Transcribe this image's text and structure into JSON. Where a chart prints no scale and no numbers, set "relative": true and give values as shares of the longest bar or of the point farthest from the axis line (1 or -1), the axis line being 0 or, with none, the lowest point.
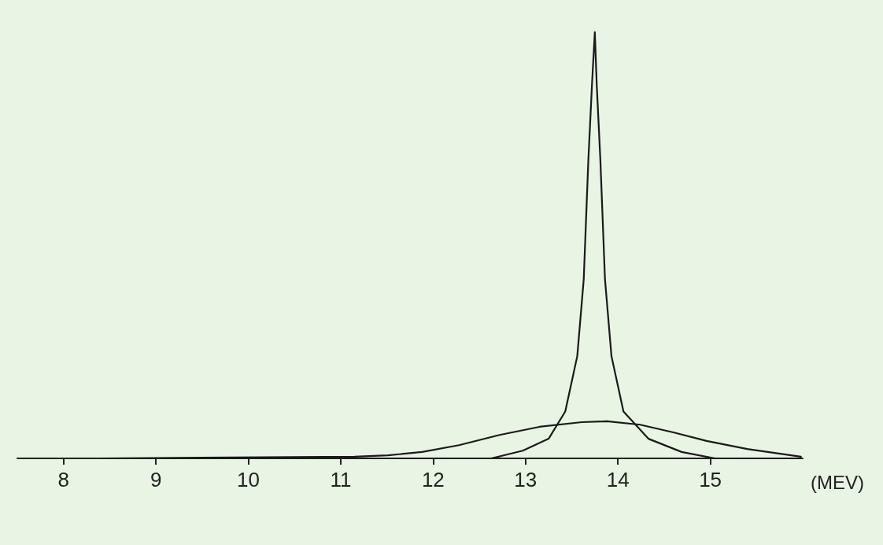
{
  "chart_data": {
    "type": "line",
    "relative": true,
    "xlabel": "(MEV)",
    "xlim": [
      7.5,
      16
    ],
    "xticks": [
      8,
      9,
      10,
      11,
      12,
      13,
      14,
      15
    ],
    "tick_labels": "x",
    "marker": "none",
    "line_style": "solid",
    "series": [
      {
        "color": "#1a1a1a",
        "x": [
          8.42,
          12.63,
          12.97,
          13.25,
          13.43,
          13.56,
          13.63,
          13.68,
          13.72,
          13.75,
          13.77,
          13.81,
          13.86,
          13.93,
          14.06,
          14.33,
          14.69,
          15.05,
          15.98
        ],
        "values": [
          0,
          0,
          0.018,
          0.046,
          0.11,
          0.24,
          0.42,
          0.7,
          0.88,
          1,
          0.88,
          0.7,
          0.42,
          0.24,
          0.11,
          0.046,
          0.015,
          0,
          0
        ]
      },
      {
        "color": "#1a1a1a",
        "x": [
          8.42,
          11.15,
          11.51,
          11.88,
          12.28,
          12.72,
          13.15,
          13.61,
          13.88,
          14.24,
          14.6,
          14.96,
          15.4,
          15.98
        ],
        "values": [
          0,
          0.004,
          0.007,
          0.015,
          0.031,
          0.055,
          0.074,
          0.085,
          0.087,
          0.079,
          0.061,
          0.041,
          0.022,
          0.004
        ]
      }
    ]
  }
}
